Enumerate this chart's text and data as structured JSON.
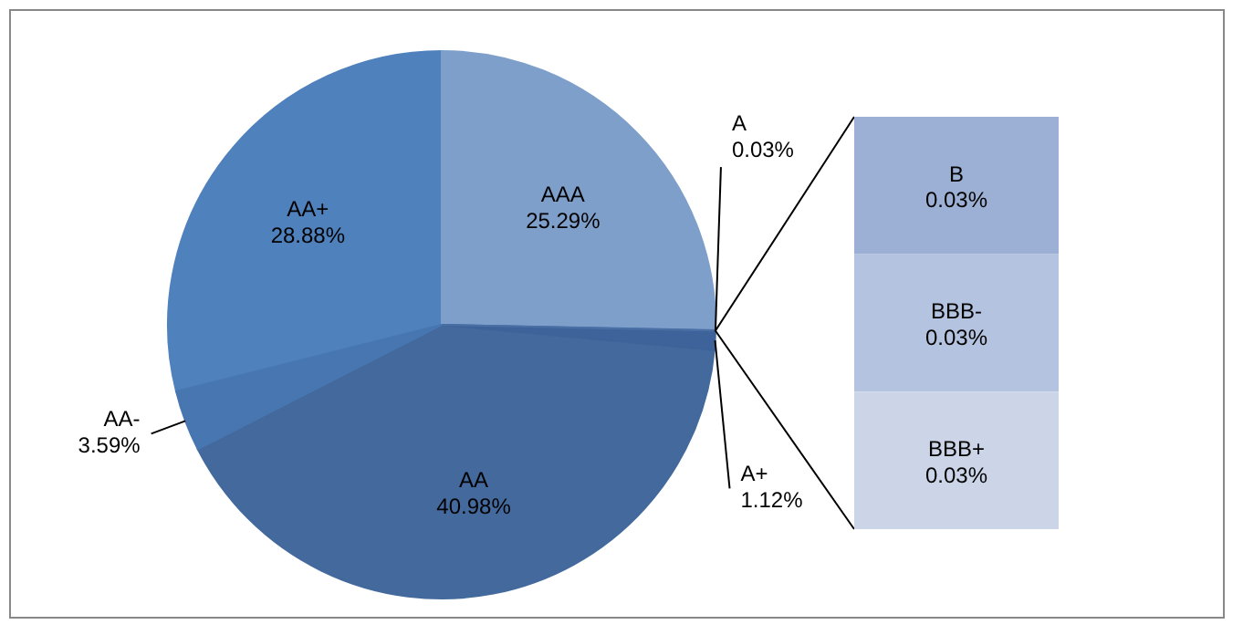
{
  "chart_data": [
    {
      "type": "pie",
      "categories": [
        "AAA",
        "A",
        "A+",
        "AA",
        "AA-",
        "AA+"
      ],
      "values": [
        25.29,
        0.03,
        1.12,
        40.98,
        3.59,
        28.88
      ],
      "colors": [
        "#7f9fcb",
        "#4a6fa5",
        "#3d639a",
        "#43699d",
        "#4776b0",
        "#4f81bd"
      ],
      "value_labels": [
        "25.29%",
        "0.03%",
        "1.12%",
        "40.98%",
        "3.59%",
        "28.88%"
      ]
    },
    {
      "type": "bar",
      "stacked": true,
      "categories": [
        null
      ],
      "data_labels": true,
      "series": [
        {
          "name": "B",
          "color": "#9bb0d4",
          "values": [
            0.03
          ],
          "value_labels": [
            "0.03%"
          ]
        },
        {
          "name": "BBB-",
          "color": "#b4c3df",
          "values": [
            0.03
          ],
          "value_labels": [
            "0.03%"
          ]
        },
        {
          "name": "BBB+",
          "color": "#cbd5e7",
          "values": [
            0.03
          ],
          "value_labels": [
            "0.03%"
          ]
        }
      ]
    }
  ]
}
